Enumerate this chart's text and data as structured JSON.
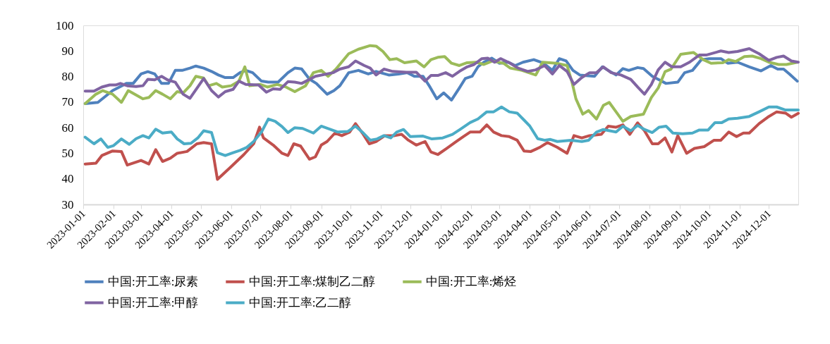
{
  "chart_data": {
    "type": "line",
    "xlim": [
      "2023-01-01",
      "2024-12-31"
    ],
    "ylim": [
      30,
      100
    ],
    "yticks": [
      30,
      40,
      50,
      60,
      70,
      80,
      90,
      100
    ],
    "xticks": [
      "2023-01-01",
      "2023-02-01",
      "2023-03-01",
      "2023-04-01",
      "2023-05-01",
      "2023-06-01",
      "2023-07-01",
      "2023-08-01",
      "2023-09-01",
      "2023-10-01",
      "2023-11-01",
      "2023-12-01",
      "2024-01-01",
      "2024-02-01",
      "2024-03-01",
      "2024-04-01",
      "2024-05-01",
      "2024-06-01",
      "2024-07-01",
      "2024-08-01",
      "2024-09-01",
      "2024-10-01",
      "2024-11-01",
      "2024-12-01"
    ],
    "grid": false,
    "legend": "bottom",
    "series": [
      {
        "name": "中国:开工率:尿素",
        "color": "#4f81bd",
        "x": [
          "2023-01-03",
          "2023-01-16",
          "2023-01-31",
          "2023-02-07",
          "2023-02-14",
          "2023-02-21",
          "2023-03-01",
          "2023-03-08",
          "2023-03-15",
          "2023-03-22",
          "2023-03-29",
          "2023-04-05",
          "2023-04-12",
          "2023-04-20",
          "2023-04-26",
          "2023-05-04",
          "2023-05-12",
          "2023-05-19",
          "2023-05-26",
          "2023-06-03",
          "2023-06-10",
          "2023-06-16",
          "2023-06-23",
          "2023-07-02",
          "2023-07-09",
          "2023-07-19",
          "2023-07-29",
          "2023-08-05",
          "2023-08-12",
          "2023-08-20",
          "2023-08-27",
          "2023-09-07",
          "2023-09-14",
          "2023-09-20",
          "2023-09-29",
          "2023-10-09",
          "2023-10-19",
          "2023-10-27",
          "2023-11-09",
          "2023-11-19",
          "2023-11-28",
          "2023-12-05",
          "2023-12-14",
          "2023-12-21",
          "2023-12-28",
          "2024-01-04",
          "2024-01-12",
          "2024-01-20",
          "2024-01-26",
          "2024-02-02",
          "2024-02-08",
          "2024-02-14",
          "2024-02-22",
          "2024-03-01",
          "2024-03-10",
          "2024-03-17",
          "2024-03-25",
          "2024-04-05",
          "2024-04-15",
          "2024-04-24",
          "2024-05-01",
          "2024-05-08",
          "2024-05-15",
          "2024-05-22",
          "2024-06-06",
          "2024-06-14",
          "2024-06-20",
          "2024-06-28",
          "2024-07-05",
          "2024-07-11",
          "2024-07-20",
          "2024-07-26",
          "2024-08-04",
          "2024-08-11",
          "2024-08-18",
          "2024-08-30",
          "2024-09-06",
          "2024-09-14",
          "2024-09-23",
          "2024-10-01",
          "2024-10-13",
          "2024-10-20",
          "2024-10-30",
          "2024-11-11",
          "2024-11-23",
          "2024-12-03",
          "2024-12-10",
          "2024-12-16",
          "2024-12-22",
          "2024-12-30"
        ],
        "values": [
          69.4,
          69.9,
          74.5,
          75.9,
          77.3,
          77.3,
          81.0,
          81.9,
          81.0,
          77.3,
          77.3,
          82.4,
          82.4,
          83.3,
          84.1,
          83.3,
          82.0,
          80.6,
          79.6,
          79.6,
          81.5,
          82.4,
          81.5,
          78.2,
          77.8,
          77.8,
          81.5,
          83.3,
          83.0,
          79.0,
          77.3,
          73.1,
          74.5,
          76.4,
          81.5,
          82.4,
          81.0,
          82.0,
          80.6,
          81.0,
          81.5,
          80.1,
          80.1,
          75.9,
          71.3,
          73.6,
          70.8,
          75.5,
          79.2,
          80.1,
          83.8,
          85.6,
          87.2,
          85.2,
          85.6,
          84.3,
          85.6,
          86.6,
          85.2,
          82.4,
          87.0,
          86.1,
          82.4,
          80.6,
          80.1,
          83.8,
          82.4,
          80.6,
          83.1,
          82.4,
          83.5,
          83.1,
          80.1,
          78.7,
          77.3,
          77.8,
          81.5,
          82.4,
          86.6,
          87.0,
          87.0,
          85.2,
          85.6,
          83.8,
          82.2,
          84.3,
          82.9,
          82.9,
          81.0,
          78.2
        ]
      },
      {
        "name": "中国:开工率:煤制乙二醇",
        "color": "#c0504d",
        "x": [
          "2023-01-03",
          "2023-01-14",
          "2023-01-20",
          "2023-01-31",
          "2023-02-09",
          "2023-02-15",
          "2023-03-01",
          "2023-03-09",
          "2023-03-16",
          "2023-03-23",
          "2023-03-31",
          "2023-04-07",
          "2023-04-17",
          "2023-04-27",
          "2023-05-04",
          "2023-05-12",
          "2023-05-18",
          "2023-05-31",
          "2023-06-14",
          "2023-06-24",
          "2023-06-30",
          "2023-07-04",
          "2023-07-14",
          "2023-07-23",
          "2023-07-29",
          "2023-08-04",
          "2023-08-11",
          "2023-08-20",
          "2023-08-26",
          "2023-09-01",
          "2023-09-07",
          "2023-09-15",
          "2023-09-22",
          "2023-09-30",
          "2023-10-06",
          "2023-10-13",
          "2023-10-20",
          "2023-10-27",
          "2023-11-05",
          "2023-11-15",
          "2023-11-22",
          "2023-11-29",
          "2023-12-07",
          "2023-12-16",
          "2023-12-22",
          "2023-12-29",
          "2024-01-07",
          "2024-01-17",
          "2024-01-24",
          "2024-01-31",
          "2024-02-10",
          "2024-02-17",
          "2024-02-24",
          "2024-03-03",
          "2024-03-11",
          "2024-03-19",
          "2024-03-26",
          "2024-04-02",
          "2024-04-11",
          "2024-04-19",
          "2024-04-29",
          "2024-05-09",
          "2024-05-16",
          "2024-05-24",
          "2024-06-01",
          "2024-06-13",
          "2024-06-20",
          "2024-06-28",
          "2024-07-05",
          "2024-07-12",
          "2024-07-20",
          "2024-07-27",
          "2024-08-04",
          "2024-08-10",
          "2024-08-17",
          "2024-08-24",
          "2024-08-30",
          "2024-09-08",
          "2024-09-16",
          "2024-09-26",
          "2024-10-06",
          "2024-10-13",
          "2024-10-21",
          "2024-10-29",
          "2024-11-05",
          "2024-11-11",
          "2024-11-21",
          "2024-12-01",
          "2024-12-09",
          "2024-12-18",
          "2024-12-24",
          "2024-12-31"
        ],
        "values": [
          45.8,
          46.1,
          49.1,
          50.9,
          50.7,
          45.4,
          47.2,
          45.8,
          51.4,
          46.8,
          48.1,
          50.0,
          50.7,
          53.7,
          54.2,
          53.7,
          39.8,
          44.4,
          49.5,
          53.7,
          60.2,
          56.0,
          53.2,
          50.0,
          49.1,
          53.7,
          52.8,
          47.7,
          48.6,
          53.2,
          54.6,
          57.9,
          56.9,
          58.3,
          61.6,
          57.9,
          53.7,
          54.6,
          56.9,
          56.9,
          57.4,
          55.1,
          53.2,
          54.6,
          50.5,
          49.5,
          51.9,
          54.6,
          56.5,
          58.3,
          58.3,
          61.1,
          58.3,
          56.9,
          56.5,
          55.1,
          50.9,
          50.7,
          52.3,
          54.2,
          52.3,
          50.0,
          56.9,
          56.0,
          56.9,
          57.4,
          60.6,
          60.2,
          61.1,
          57.4,
          61.9,
          58.8,
          53.7,
          53.7,
          56.0,
          50.5,
          56.9,
          50.0,
          51.9,
          52.6,
          55.1,
          55.1,
          58.3,
          56.5,
          57.9,
          57.9,
          61.6,
          64.4,
          66.2,
          65.7,
          64.1,
          65.6
        ]
      },
      {
        "name": "中国:开工率:烯烃",
        "color": "#9bbb59",
        "x": [
          "2023-01-03",
          "2023-01-14",
          "2023-01-21",
          "2023-01-31",
          "2023-02-09",
          "2023-02-16",
          "2023-03-03",
          "2023-03-09",
          "2023-03-16",
          "2023-03-23",
          "2023-03-31",
          "2023-04-07",
          "2023-04-13",
          "2023-04-20",
          "2023-04-26",
          "2023-05-04",
          "2023-05-09",
          "2023-05-17",
          "2023-05-23",
          "2023-06-01",
          "2023-06-09",
          "2023-06-15",
          "2023-06-20",
          "2023-07-01",
          "2023-07-08",
          "2023-07-18",
          "2023-07-27",
          "2023-08-05",
          "2023-08-16",
          "2023-08-24",
          "2023-09-01",
          "2023-09-08",
          "2023-09-16",
          "2023-09-29",
          "2023-10-09",
          "2023-10-21",
          "2023-10-27",
          "2023-11-03",
          "2023-11-10",
          "2023-11-17",
          "2023-11-25",
          "2023-12-07",
          "2023-12-15",
          "2023-12-22",
          "2023-12-29",
          "2024-01-05",
          "2024-01-12",
          "2024-01-20",
          "2024-01-28",
          "2024-02-06",
          "2024-02-14",
          "2024-02-23",
          "2024-03-05",
          "2024-03-12",
          "2024-03-24",
          "2024-04-07",
          "2024-04-14",
          "2024-04-28",
          "2024-05-09",
          "2024-05-14",
          "2024-05-18",
          "2024-05-25",
          "2024-05-31",
          "2024-06-08",
          "2024-06-15",
          "2024-06-21",
          "2024-06-28",
          "2024-07-05",
          "2024-07-13",
          "2024-07-26",
          "2024-08-03",
          "2024-08-10",
          "2024-08-17",
          "2024-08-23",
          "2024-09-02",
          "2024-09-15",
          "2024-09-25",
          "2024-10-03",
          "2024-10-15",
          "2024-10-21",
          "2024-10-28",
          "2024-11-06",
          "2024-11-14",
          "2024-11-23",
          "2024-12-01",
          "2024-12-11",
          "2024-12-19",
          "2024-12-30"
        ],
        "values": [
          69.4,
          73.1,
          74.5,
          73.1,
          69.9,
          74.5,
          71.3,
          71.8,
          74.5,
          73.1,
          71.3,
          74.1,
          73.6,
          76.4,
          80.1,
          79.4,
          76.4,
          77.3,
          75.9,
          76.4,
          78.2,
          83.8,
          76.4,
          76.9,
          75.9,
          76.9,
          75.9,
          74.1,
          76.4,
          81.5,
          82.4,
          80.1,
          82.9,
          88.9,
          90.7,
          92.1,
          91.9,
          89.8,
          86.6,
          87.0,
          85.4,
          86.1,
          83.8,
          86.6,
          87.5,
          87.8,
          85.2,
          84.3,
          85.4,
          85.6,
          84.7,
          86.1,
          85.2,
          83.3,
          82.4,
          80.6,
          85.6,
          85.2,
          84.3,
          77.8,
          71.3,
          65.3,
          66.7,
          63.4,
          68.7,
          69.9,
          66.2,
          62.5,
          64.4,
          65.3,
          71.8,
          75.5,
          81.9,
          82.9,
          88.7,
          89.4,
          86.6,
          85.2,
          85.4,
          86.6,
          85.9,
          87.8,
          88.0,
          87.0,
          85.6,
          84.7,
          84.7,
          85.6
        ]
      },
      {
        "name": "中国:开工率:甲醇",
        "color": "#8064a2",
        "x": [
          "2023-01-03",
          "2023-01-12",
          "2023-01-20",
          "2023-01-28",
          "2023-02-03",
          "2023-02-08",
          "2023-02-15",
          "2023-02-24",
          "2023-03-03",
          "2023-03-08",
          "2023-03-15",
          "2023-03-22",
          "2023-03-28",
          "2023-04-05",
          "2023-04-13",
          "2023-04-20",
          "2023-05-04",
          "2023-05-12",
          "2023-05-19",
          "2023-05-26",
          "2023-06-03",
          "2023-06-09",
          "2023-06-16",
          "2023-06-29",
          "2023-07-07",
          "2023-07-14",
          "2023-07-21",
          "2023-07-29",
          "2023-08-05",
          "2023-08-12",
          "2023-08-26",
          "2023-09-13",
          "2023-09-20",
          "2023-09-29",
          "2023-10-06",
          "2023-10-15",
          "2023-10-21",
          "2023-10-27",
          "2023-11-04",
          "2023-11-13",
          "2023-11-27",
          "2023-12-07",
          "2023-12-16",
          "2023-12-22",
          "2023-12-29",
          "2024-01-06",
          "2024-01-13",
          "2024-01-20",
          "2024-01-28",
          "2024-02-04",
          "2024-02-12",
          "2024-02-18",
          "2024-02-25",
          "2024-03-02",
          "2024-03-11",
          "2024-03-20",
          "2024-03-30",
          "2024-04-07",
          "2024-04-16",
          "2024-04-24",
          "2024-05-01",
          "2024-05-09",
          "2024-05-16",
          "2024-05-24",
          "2024-06-01",
          "2024-06-08",
          "2024-06-15",
          "2024-06-23",
          "2024-07-03",
          "2024-07-13",
          "2024-07-20",
          "2024-07-27",
          "2024-08-03",
          "2024-08-10",
          "2024-08-17",
          "2024-08-24",
          "2024-09-02",
          "2024-09-11",
          "2024-09-21",
          "2024-09-28",
          "2024-10-13",
          "2024-10-21",
          "2024-10-30",
          "2024-11-11",
          "2024-11-21",
          "2024-12-01",
          "2024-12-09",
          "2024-12-16",
          "2024-12-24",
          "2024-12-31"
        ],
        "values": [
          74.3,
          74.3,
          75.9,
          76.7,
          76.7,
          77.3,
          76.4,
          76.1,
          76.4,
          78.9,
          78.7,
          80.1,
          78.7,
          77.8,
          73.1,
          71.5,
          79.2,
          74.5,
          72.0,
          74.1,
          75.0,
          78.2,
          76.9,
          76.7,
          73.9,
          75.2,
          75.0,
          78.0,
          77.8,
          77.3,
          80.1,
          81.5,
          82.9,
          83.8,
          86.1,
          84.3,
          83.3,
          80.6,
          82.9,
          82.0,
          81.7,
          81.7,
          78.2,
          80.4,
          80.4,
          81.5,
          80.1,
          82.0,
          83.8,
          84.7,
          87.0,
          87.2,
          85.6,
          87.0,
          85.4,
          83.3,
          82.0,
          82.6,
          84.3,
          81.0,
          84.3,
          82.0,
          76.9,
          79.6,
          81.5,
          81.5,
          83.8,
          81.5,
          80.6,
          78.9,
          75.9,
          73.1,
          76.9,
          82.6,
          85.6,
          83.8,
          83.8,
          85.6,
          88.4,
          88.4,
          90.0,
          89.4,
          89.8,
          90.9,
          88.9,
          86.3,
          87.5,
          88.0,
          86.1,
          85.6
        ]
      },
      {
        "name": "中国:开工率:乙二醇",
        "color": "#4bacc6",
        "x": [
          "2023-01-03",
          "2023-01-12",
          "2023-01-19",
          "2023-01-26",
          "2023-02-01",
          "2023-02-09",
          "2023-02-17",
          "2023-02-24",
          "2023-03-03",
          "2023-03-09",
          "2023-03-16",
          "2023-03-23",
          "2023-04-01",
          "2023-04-07",
          "2023-04-14",
          "2023-04-21",
          "2023-04-28",
          "2023-05-04",
          "2023-05-12",
          "2023-05-18",
          "2023-05-26",
          "2023-06-03",
          "2023-06-10",
          "2023-06-17",
          "2023-06-24",
          "2023-07-02",
          "2023-07-09",
          "2023-07-16",
          "2023-07-23",
          "2023-07-29",
          "2023-08-05",
          "2023-08-13",
          "2023-08-24",
          "2023-09-01",
          "2023-09-10",
          "2023-09-18",
          "2023-09-28",
          "2023-10-06",
          "2023-10-14",
          "2023-10-21",
          "2023-10-28",
          "2023-11-04",
          "2023-11-11",
          "2023-11-17",
          "2023-11-24",
          "2023-12-01",
          "2023-12-14",
          "2023-12-23",
          "2024-01-03",
          "2024-01-13",
          "2024-01-21",
          "2024-01-31",
          "2024-02-08",
          "2024-02-17",
          "2024-02-24",
          "2024-03-03",
          "2024-03-11",
          "2024-03-19",
          "2024-03-26",
          "2024-04-01",
          "2024-04-09",
          "2024-04-16",
          "2024-04-22",
          "2024-04-29",
          "2024-05-13",
          "2024-05-24",
          "2024-05-31",
          "2024-06-08",
          "2024-06-15",
          "2024-06-28",
          "2024-07-05",
          "2024-07-13",
          "2024-07-20",
          "2024-07-27",
          "2024-08-04",
          "2024-08-11",
          "2024-08-18",
          "2024-08-25",
          "2024-09-04",
          "2024-09-14",
          "2024-09-21",
          "2024-09-30",
          "2024-10-07",
          "2024-10-14",
          "2024-10-21",
          "2024-10-30",
          "2024-11-11",
          "2024-11-21",
          "2024-12-01",
          "2024-12-09",
          "2024-12-18",
          "2024-12-31"
        ],
        "values": [
          56.3,
          53.7,
          55.6,
          52.3,
          53.0,
          55.6,
          53.5,
          55.7,
          56.9,
          56.0,
          59.4,
          57.9,
          58.3,
          55.6,
          53.7,
          53.9,
          56.0,
          58.8,
          58.1,
          50.2,
          49.1,
          50.2,
          51.1,
          52.3,
          54.6,
          58.3,
          63.4,
          62.5,
          60.4,
          58.1,
          60.0,
          59.7,
          57.9,
          60.6,
          59.4,
          58.3,
          58.5,
          60.6,
          57.9,
          55.1,
          55.6,
          56.9,
          56.0,
          58.3,
          59.3,
          56.5,
          56.7,
          55.6,
          56.0,
          57.4,
          59.4,
          62.0,
          63.4,
          66.2,
          66.2,
          68.1,
          66.2,
          65.7,
          63.0,
          60.6,
          55.7,
          55.1,
          55.4,
          54.6,
          55.1,
          54.6,
          55.1,
          58.3,
          59.3,
          58.3,
          60.6,
          58.8,
          60.9,
          59.3,
          58.1,
          60.2,
          60.6,
          57.9,
          57.6,
          57.9,
          59.1,
          59.1,
          62.0,
          62.0,
          63.4,
          63.7,
          64.4,
          66.2,
          68.1,
          68.1,
          66.9,
          66.9
        ]
      }
    ]
  }
}
